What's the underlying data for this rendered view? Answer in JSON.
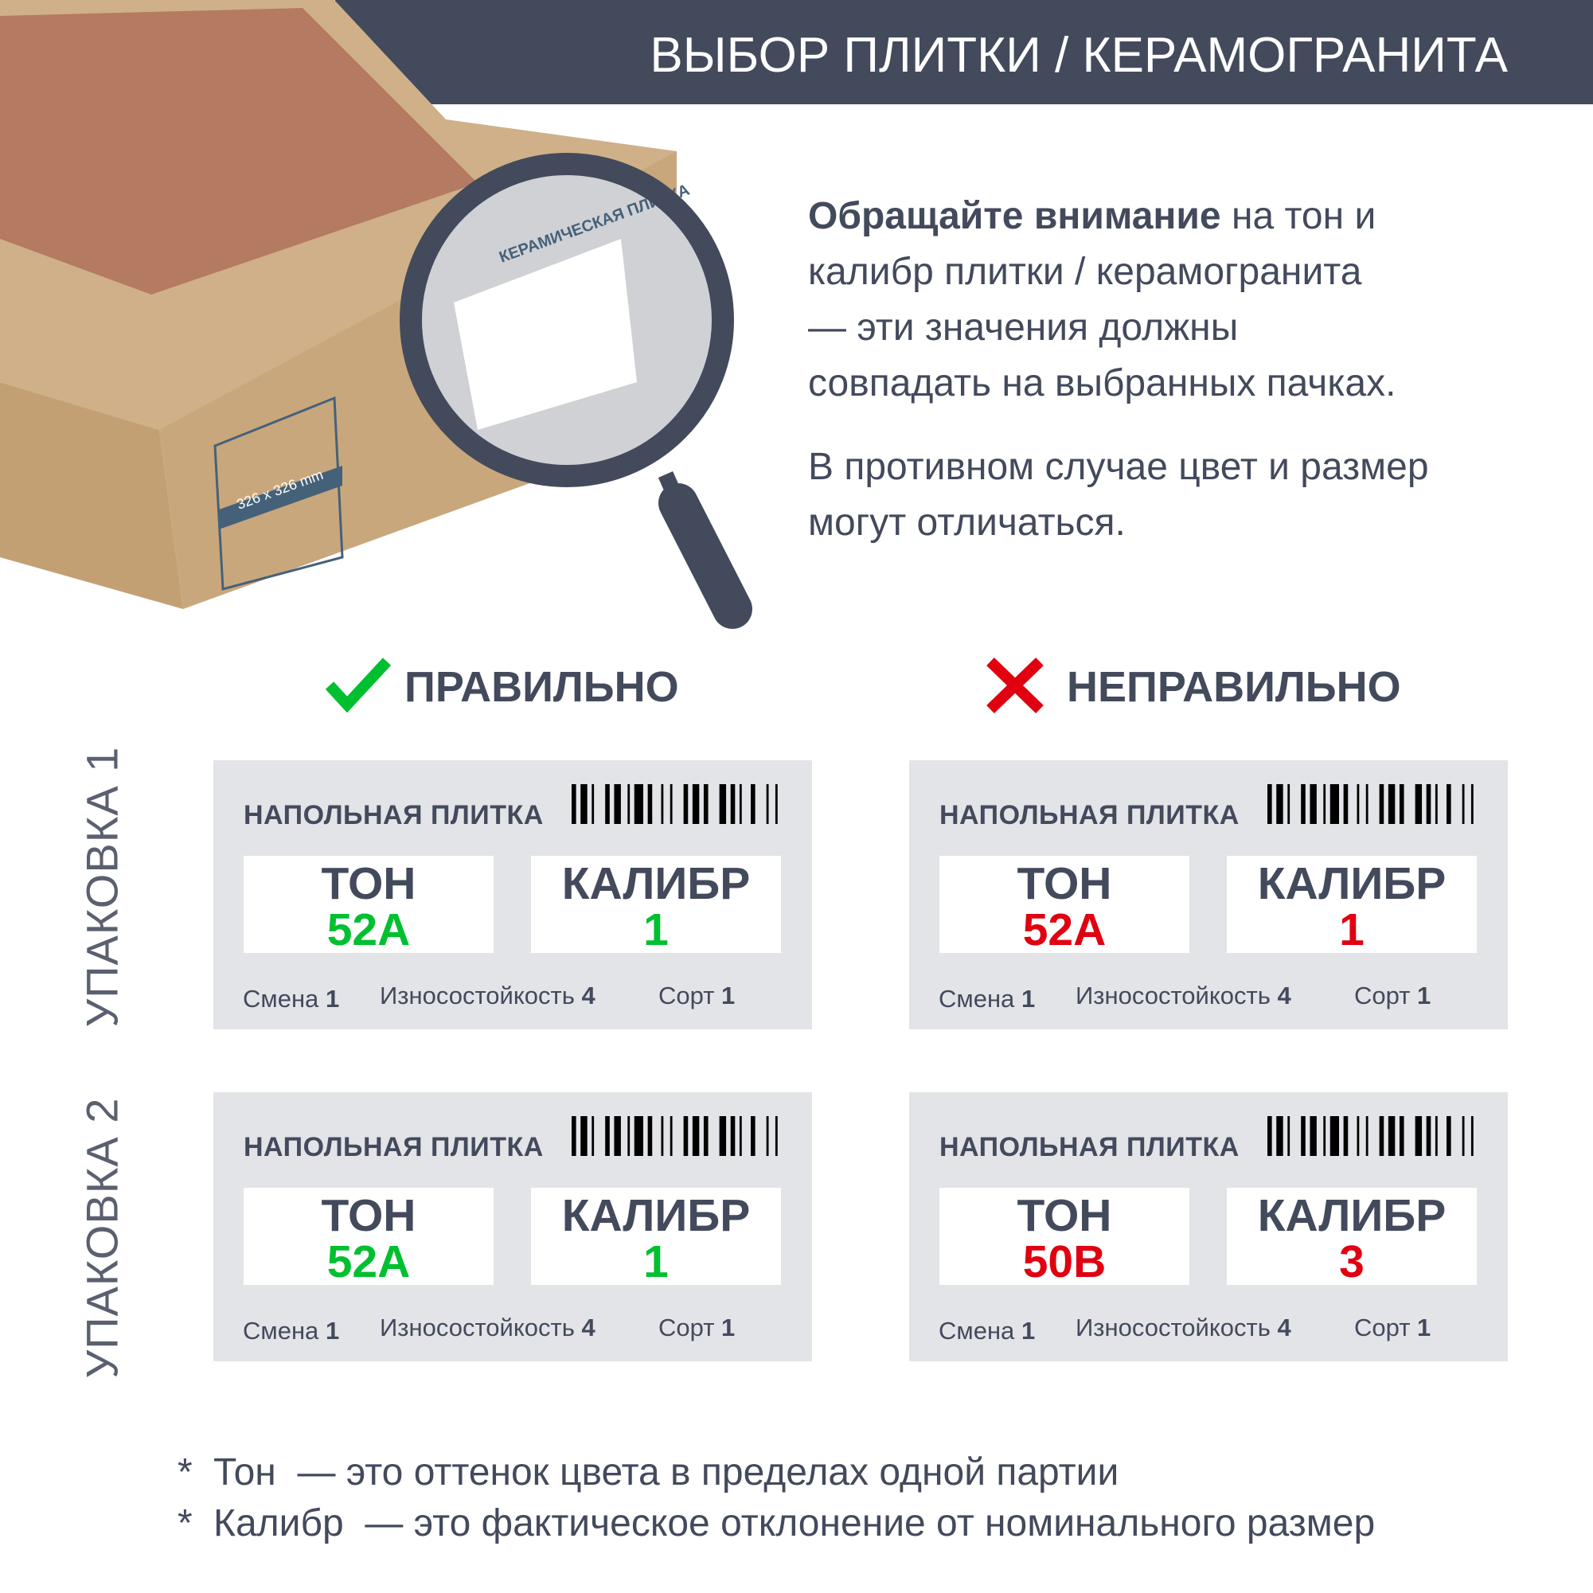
{
  "header": {
    "title": "ВЫБОР ПЛИТКИ / КЕРАМОГРАНИТА"
  },
  "intro": {
    "bold": "Обращайте внимание",
    "line1_rest": " на тон и",
    "line2": "калибр плитки / керамогранита",
    "line3": "— эти значения должны",
    "line4": "совпадать на выбранных пачках.",
    "p2_line1": "В противном случае цвет и размер",
    "p2_line2": "могут отличаться."
  },
  "illustration": {
    "box_label": "КЕРАМИЧЕСКАЯ ПЛИТКА",
    "box_size": "326 x 326 mm"
  },
  "columns": {
    "correct": "ПРАВИЛЬНО",
    "wrong": "НЕПРАВИЛЬНО"
  },
  "rows": {
    "pack1": "УПАКОВКА 1",
    "pack2": "УПАКОВКА 2"
  },
  "labels": {
    "title": "НАПОЛЬНАЯ ПЛИТКА",
    "tone": "ТОН",
    "caliber": "КАЛИБР",
    "shift": "Смена",
    "wear": "Износостойкость",
    "grade": "Сорт"
  },
  "cards": [
    {
      "tone": "52A",
      "caliber": "1",
      "shift": "1",
      "wear": "4",
      "grade": "1",
      "status": "correct"
    },
    {
      "tone": "52A",
      "caliber": "1",
      "shift": "1",
      "wear": "4",
      "grade": "1",
      "status": "wrong"
    },
    {
      "tone": "52A",
      "caliber": "1",
      "shift": "1",
      "wear": "4",
      "grade": "1",
      "status": "correct"
    },
    {
      "tone": "50B",
      "caliber": "3",
      "shift": "1",
      "wear": "4",
      "grade": "1",
      "status": "wrong"
    }
  ],
  "footnotes": [
    {
      "star": "*",
      "term": "Тон",
      "text": "  — это оттенок цвета в пределах одной партии"
    },
    {
      "star": "*",
      "term": "Калибр",
      "text": "  — это фактическое отклонение от номинального размер"
    }
  ],
  "colors": {
    "dark": "#434a5c",
    "correct": "#00c030",
    "wrong": "#e00010",
    "card": "#e3e4e8"
  }
}
